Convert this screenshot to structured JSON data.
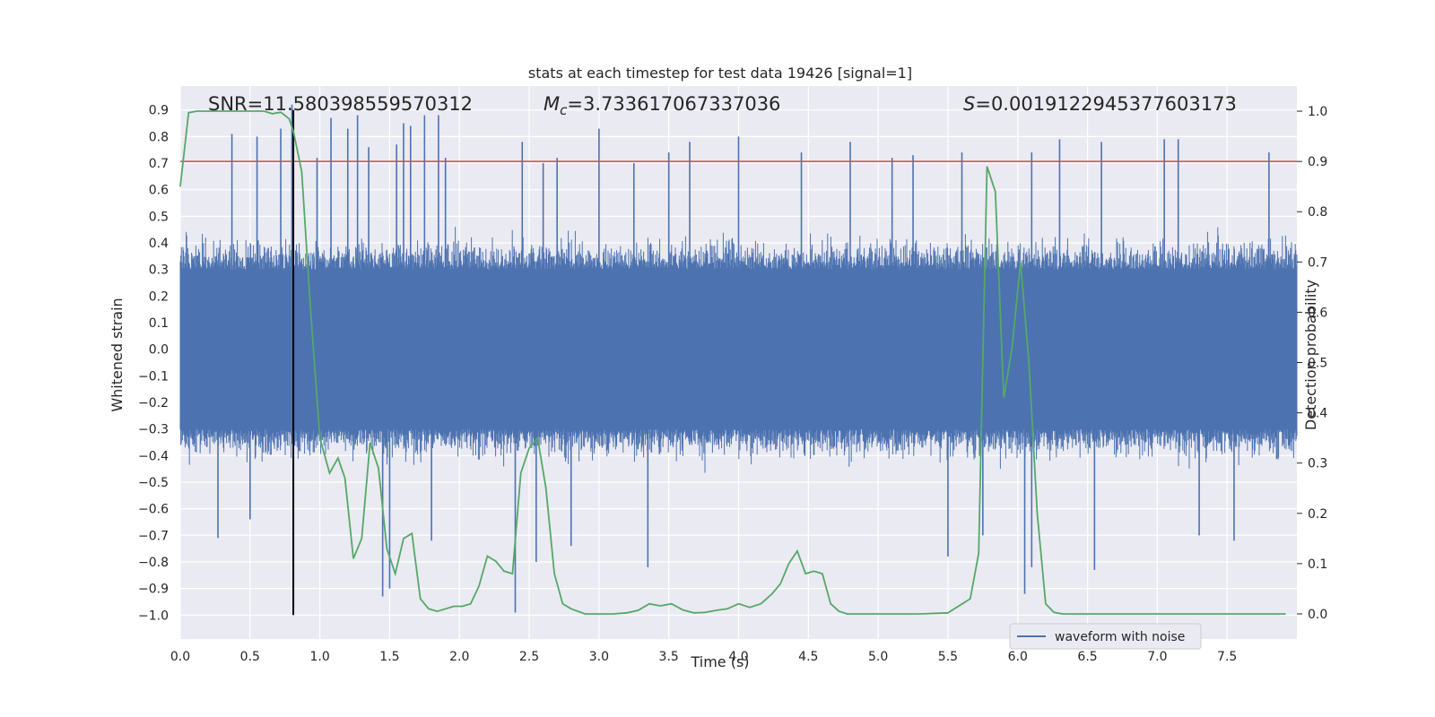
{
  "chart_data": {
    "type": "line",
    "title": "stats at each timestep for test data 19426 [signal=1]",
    "xlabel": "Time (s)",
    "ylabel_left": "Whitened strain",
    "ylabel_right": "Detection probability",
    "xlim": [
      0.0,
      8.0
    ],
    "ylim_left": [
      -1.09,
      0.99
    ],
    "ylim_right": [
      -0.05,
      1.05
    ],
    "x_ticks": [
      "0.0",
      "0.5",
      "1.0",
      "1.5",
      "2.0",
      "2.5",
      "3.0",
      "3.5",
      "4.0",
      "4.5",
      "5.0",
      "5.5",
      "6.0",
      "6.5",
      "7.0",
      "7.5"
    ],
    "y_left_ticks": [
      "0.9",
      "0.8",
      "0.7",
      "0.6",
      "0.5",
      "0.4",
      "0.3",
      "0.2",
      "0.1",
      "0.0",
      "−0.1",
      "−0.2",
      "−0.3",
      "−0.4",
      "−0.5",
      "−0.6",
      "−0.7",
      "−0.8",
      "−0.9",
      "−1.0"
    ],
    "y_right_ticks": [
      "1.0",
      "0.9",
      "0.8",
      "0.7",
      "0.6",
      "0.5",
      "0.4",
      "0.3",
      "0.2",
      "0.1",
      "0.0"
    ],
    "annotations": {
      "snr": "SNR=11.580398559570312",
      "mc_symbol": "M",
      "mc_sub": "c",
      "mc_value": "=3.733617067337036",
      "s_symbol": "S",
      "s_value": "=0.0019122945377603173"
    },
    "threshold_right": 0.9,
    "marker_time": 0.81,
    "legend": {
      "label": "waveform with noise",
      "placement": "lower-right"
    },
    "series": [
      {
        "name": "waveform with noise",
        "axis": "left",
        "color": "#4c72b0",
        "description": "dense noisy whitened strain, envelope roughly ±0.3 with spikes to about ±0.9",
        "spikes": [
          [
            0.37,
            0.81
          ],
          [
            0.55,
            0.8
          ],
          [
            0.72,
            0.83
          ],
          [
            0.8,
            0.92
          ],
          [
            0.98,
            0.72
          ],
          [
            1.08,
            0.87
          ],
          [
            1.2,
            0.83
          ],
          [
            1.27,
            0.88
          ],
          [
            1.35,
            0.76
          ],
          [
            1.55,
            0.77
          ],
          [
            1.6,
            0.85
          ],
          [
            1.65,
            0.84
          ],
          [
            1.75,
            0.88
          ],
          [
            1.85,
            0.88
          ],
          [
            1.9,
            0.72
          ],
          [
            2.45,
            0.78
          ],
          [
            2.6,
            0.7
          ],
          [
            2.7,
            0.72
          ],
          [
            3.0,
            0.83
          ],
          [
            3.25,
            0.7
          ],
          [
            3.5,
            0.74
          ],
          [
            3.65,
            0.78
          ],
          [
            4.0,
            0.8
          ],
          [
            4.45,
            0.74
          ],
          [
            4.8,
            0.78
          ],
          [
            5.1,
            0.72
          ],
          [
            5.25,
            0.73
          ],
          [
            5.6,
            0.74
          ],
          [
            6.1,
            0.74
          ],
          [
            6.3,
            0.79
          ],
          [
            6.6,
            0.78
          ],
          [
            7.05,
            0.79
          ],
          [
            7.15,
            0.79
          ],
          [
            7.8,
            0.74
          ],
          [
            0.27,
            -0.71
          ],
          [
            0.5,
            -0.64
          ],
          [
            1.45,
            -0.93
          ],
          [
            1.5,
            -0.9
          ],
          [
            1.8,
            -0.72
          ],
          [
            2.4,
            -0.99
          ],
          [
            2.55,
            -0.8
          ],
          [
            2.8,
            -0.74
          ],
          [
            3.35,
            -0.82
          ],
          [
            5.5,
            -0.78
          ],
          [
            5.75,
            -0.7
          ],
          [
            6.05,
            -0.92
          ],
          [
            6.1,
            -0.82
          ],
          [
            6.55,
            -0.83
          ],
          [
            7.3,
            -0.7
          ],
          [
            7.55,
            -0.72
          ]
        ]
      },
      {
        "name": "detection probability",
        "axis": "right",
        "color": "#55a868",
        "x": [
          0.0,
          0.06,
          0.12,
          0.18,
          0.24,
          0.3,
          0.36,
          0.42,
          0.48,
          0.54,
          0.6,
          0.66,
          0.72,
          0.78,
          0.81,
          0.87,
          0.93,
          1.0,
          1.07,
          1.13,
          1.18,
          1.24,
          1.3,
          1.36,
          1.42,
          1.48,
          1.54,
          1.6,
          1.66,
          1.72,
          1.78,
          1.84,
          1.9,
          1.96,
          2.02,
          2.08,
          2.14,
          2.2,
          2.26,
          2.32,
          2.38,
          2.44,
          2.5,
          2.56,
          2.62,
          2.68,
          2.74,
          2.8,
          2.9,
          3.0,
          3.1,
          3.2,
          3.28,
          3.36,
          3.44,
          3.52,
          3.6,
          3.68,
          3.76,
          3.84,
          3.92,
          4.0,
          4.08,
          4.16,
          4.24,
          4.3,
          4.36,
          4.42,
          4.48,
          4.54,
          4.6,
          4.66,
          4.72,
          4.78,
          4.9,
          5.1,
          5.3,
          5.5,
          5.66,
          5.72,
          5.78,
          5.84,
          5.9,
          5.96,
          6.02,
          6.08,
          6.14,
          6.2,
          6.26,
          6.32,
          6.5,
          7.0,
          7.2,
          7.5,
          7.7,
          7.92
        ],
        "values": [
          0.85,
          0.997,
          1.0,
          1.0,
          1.0,
          1.0,
          1.0,
          1.0,
          1.0,
          1.0,
          1.0,
          0.995,
          0.998,
          0.985,
          0.96,
          0.88,
          0.62,
          0.35,
          0.28,
          0.31,
          0.27,
          0.11,
          0.15,
          0.34,
          0.29,
          0.13,
          0.08,
          0.15,
          0.16,
          0.03,
          0.01,
          0.005,
          0.01,
          0.015,
          0.015,
          0.02,
          0.055,
          0.115,
          0.105,
          0.085,
          0.08,
          0.28,
          0.33,
          0.35,
          0.25,
          0.08,
          0.02,
          0.01,
          0.0,
          0.0,
          0.0,
          0.002,
          0.007,
          0.02,
          0.016,
          0.02,
          0.008,
          0.002,
          0.003,
          0.007,
          0.01,
          0.02,
          0.013,
          0.02,
          0.04,
          0.06,
          0.1,
          0.125,
          0.08,
          0.085,
          0.08,
          0.02,
          0.005,
          0.0,
          0.0,
          0.0,
          0.0,
          0.002,
          0.03,
          0.12,
          0.89,
          0.84,
          0.43,
          0.53,
          0.7,
          0.5,
          0.2,
          0.02,
          0.003,
          0.0,
          0.0,
          0.0,
          0.0,
          0.0,
          0.0,
          0.0
        ]
      }
    ]
  }
}
